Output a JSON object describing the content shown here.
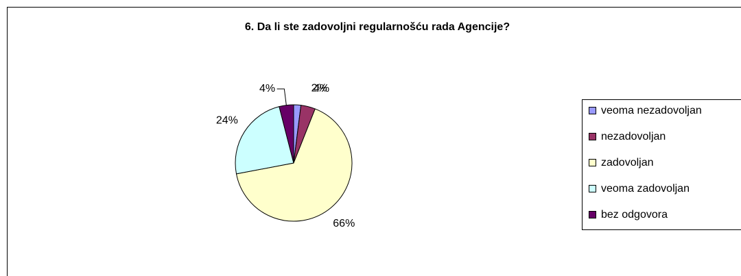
{
  "chart_data": {
    "type": "pie",
    "title": "6. Da li ste zadovoljni regularnošću rada Agencije?",
    "categories": [
      "veoma nezadovoljan",
      "nezadovoljan",
      "zadovoljan",
      "veoma zadovoljan",
      "bez odgovora"
    ],
    "values": [
      2,
      4,
      66,
      24,
      4
    ],
    "value_labels": [
      "2%",
      "4%",
      "66%",
      "24%",
      "4%"
    ],
    "colors": [
      "#9999ff",
      "#993366",
      "#ffffcc",
      "#ccffff",
      "#660066"
    ],
    "legend": "right"
  }
}
